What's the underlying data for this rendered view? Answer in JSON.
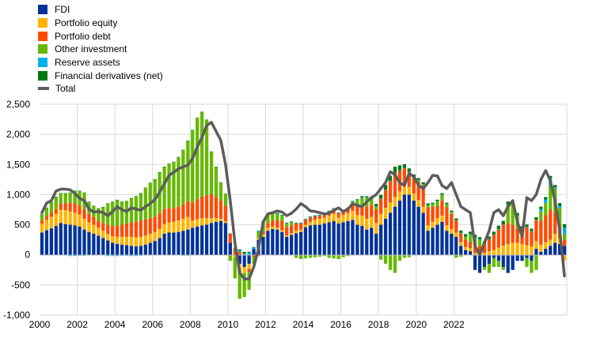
{
  "chart_data": {
    "type": "bar",
    "stacked": true,
    "grid": true,
    "legend_position": "top-left",
    "ylim": [
      -1000,
      2500
    ],
    "yticks": [
      -1000,
      -500,
      0,
      500,
      1000,
      1500,
      2000,
      2500
    ],
    "ytick_labels": [
      "-1,000",
      "-500",
      "0",
      "500",
      "1,000",
      "1,500",
      "2,000",
      "2,500"
    ],
    "xtick_labels": [
      "2000",
      "2002",
      "2004",
      "2006",
      "2008",
      "2010",
      "2012",
      "2014",
      "2016",
      "2018",
      "2020",
      "2022"
    ],
    "x_start_year": 2000,
    "periods_per_year": 4,
    "categories_note": "quarterly, 2000Q1 to 2022Q4",
    "series": [
      {
        "name": "FDI",
        "color": "#003299",
        "values": [
          370,
          410,
          440,
          480,
          530,
          510,
          500,
          490,
          470,
          420,
          380,
          350,
          320,
          280,
          240,
          200,
          180,
          170,
          160,
          150,
          140,
          150,
          170,
          200,
          230,
          280,
          350,
          370,
          370,
          380,
          400,
          420,
          450,
          470,
          490,
          500,
          530,
          550,
          560,
          530,
          200,
          0,
          -150,
          -200,
          -150,
          100,
          250,
          300,
          400,
          430,
          420,
          380,
          300,
          330,
          360,
          380,
          460,
          490,
          500,
          500,
          520,
          540,
          560,
          520,
          540,
          560,
          580,
          500,
          480,
          420,
          450,
          350,
          500,
          600,
          700,
          800,
          900,
          1000,
          1000,
          900,
          800,
          700,
          400,
          450,
          500,
          550,
          400,
          350,
          300,
          150,
          80,
          60,
          -250,
          -300,
          -200,
          -150,
          -50,
          -100,
          -200,
          -300,
          -250,
          -100,
          -100,
          -50,
          -100,
          100,
          50,
          100,
          150,
          200,
          180,
          150,
          50,
          -150
        ]
      },
      {
        "name": "Portfolio equity",
        "color": "#FFB400",
        "values": [
          150,
          170,
          190,
          200,
          220,
          230,
          220,
          210,
          200,
          180,
          160,
          150,
          130,
          120,
          110,
          110,
          120,
          130,
          140,
          150,
          150,
          150,
          150,
          150,
          150,
          150,
          160,
          170,
          180,
          190,
          200,
          210,
          120,
          120,
          120,
          110,
          80,
          60,
          40,
          30,
          0,
          -40,
          -80,
          -100,
          -80,
          0,
          30,
          40,
          50,
          40,
          30,
          30,
          20,
          30,
          40,
          40,
          40,
          60,
          80,
          100,
          100,
          110,
          120,
          100,
          120,
          130,
          150,
          160,
          170,
          180,
          180,
          180,
          180,
          180,
          170,
          160,
          150,
          140,
          130,
          120,
          110,
          100,
          90,
          100,
          110,
          100,
          90,
          80,
          70,
          60,
          50,
          50,
          30,
          40,
          30,
          60,
          80,
          120,
          150,
          180,
          200,
          200,
          180,
          160,
          140,
          130,
          120,
          110,
          100,
          150,
          100,
          -100,
          -120,
          -60
        ]
      },
      {
        "name": "Portfolio debt",
        "color": "#FF4B00",
        "values": [
          50,
          60,
          70,
          80,
          100,
          120,
          140,
          160,
          150,
          150,
          140,
          130,
          120,
          130,
          150,
          170,
          180,
          200,
          220,
          240,
          260,
          270,
          270,
          260,
          250,
          260,
          250,
          240,
          230,
          230,
          240,
          260,
          300,
          330,
          360,
          380,
          400,
          350,
          300,
          250,
          150,
          100,
          50,
          0,
          -50,
          -30,
          -20,
          50,
          80,
          100,
          130,
          150,
          140,
          130,
          120,
          100,
          80,
          70,
          60,
          50,
          60,
          70,
          80,
          70,
          60,
          80,
          100,
          150,
          180,
          200,
          200,
          220,
          250,
          300,
          350,
          400,
          350,
          300,
          250,
          250,
          300,
          350,
          300,
          250,
          200,
          250,
          300,
          250,
          200,
          150,
          120,
          110,
          100,
          110,
          150,
          200,
          250,
          300,
          350,
          350,
          300,
          250,
          150,
          300,
          250,
          350,
          400,
          450,
          500,
          350,
          200,
          100,
          -50,
          -30
        ]
      },
      {
        "name": "Other investment",
        "color": "#65B800",
        "values": [
          100,
          140,
          170,
          200,
          170,
          160,
          170,
          200,
          240,
          280,
          200,
          180,
          200,
          260,
          350,
          400,
          430,
          380,
          370,
          400,
          420,
          450,
          520,
          580,
          620,
          680,
          700,
          730,
          760,
          820,
          900,
          1000,
          1200,
          1350,
          1400,
          1250,
          700,
          500,
          300,
          200,
          -100,
          -350,
          -500,
          -400,
          -300,
          -120,
          100,
          150,
          130,
          120,
          100,
          90,
          60,
          50,
          -50,
          -70,
          -60,
          -50,
          -40,
          -30,
          -20,
          -50,
          -60,
          -70,
          -40,
          -20,
          50,
          100,
          120,
          150,
          100,
          50,
          -80,
          -150,
          -250,
          -300,
          -100,
          -50,
          -40,
          20,
          30,
          20,
          30,
          40,
          80,
          100,
          50,
          30,
          -50,
          -30,
          50,
          120,
          150,
          100,
          -50,
          -150,
          -150,
          -100,
          -50,
          300,
          350,
          200,
          100,
          -150,
          -200,
          -250,
          150,
          200,
          400,
          400,
          300,
          100
        ]
      },
      {
        "name": "Reserve assets",
        "color": "#00B1EA",
        "values": [
          -10,
          -10,
          -10,
          -10,
          -10,
          -10,
          -20,
          -20,
          -15,
          -15,
          -10,
          -10,
          -10,
          -10,
          -20,
          -20,
          -20,
          -15,
          -15,
          -20,
          -20,
          -15,
          -10,
          -10,
          -10,
          -10,
          -10,
          -10,
          -10,
          -10,
          -15,
          -15,
          -10,
          -10,
          -10,
          -10,
          -5,
          -5,
          -5,
          -5,
          0,
          10,
          20,
          20,
          30,
          20,
          10,
          10,
          5,
          5,
          5,
          5,
          5,
          5,
          5,
          5,
          5,
          5,
          5,
          5,
          5,
          5,
          5,
          5,
          5,
          5,
          5,
          5,
          5,
          5,
          5,
          5,
          5,
          5,
          5,
          5,
          5,
          5,
          5,
          5,
          5,
          5,
          5,
          5,
          5,
          5,
          5,
          5,
          5,
          5,
          5,
          5,
          5,
          5,
          5,
          5,
          5,
          5,
          5,
          5,
          5,
          5,
          5,
          5,
          5,
          5,
          40,
          60,
          120,
          20,
          30,
          100,
          10,
          10
        ]
      },
      {
        "name": "Financial derivatives (net)",
        "color": "#007816",
        "values": [
          5,
          5,
          5,
          5,
          5,
          5,
          5,
          5,
          5,
          5,
          5,
          5,
          5,
          5,
          5,
          5,
          5,
          5,
          5,
          5,
          5,
          5,
          5,
          5,
          5,
          5,
          5,
          5,
          5,
          5,
          5,
          5,
          5,
          5,
          5,
          5,
          5,
          5,
          5,
          5,
          5,
          10,
          20,
          30,
          20,
          10,
          10,
          10,
          10,
          10,
          10,
          10,
          10,
          10,
          10,
          10,
          10,
          10,
          10,
          10,
          10,
          10,
          10,
          10,
          10,
          10,
          10,
          10,
          20,
          20,
          30,
          40,
          60,
          80,
          90,
          100,
          80,
          60,
          50,
          40,
          30,
          30,
          30,
          20,
          20,
          20,
          20,
          20,
          30,
          40,
          40,
          40,
          50,
          40,
          40,
          40,
          50,
          60,
          60,
          50,
          40,
          40,
          40,
          40,
          40,
          40,
          40,
          40,
          40,
          40,
          50,
          60,
          60,
          60
        ]
      }
    ],
    "total": {
      "name": "Total",
      "color": "#5C5C5C",
      "values": [
        700,
        860,
        900,
        1060,
        1090,
        1090,
        1080,
        1020,
        940,
        900,
        760,
        710,
        720,
        700,
        650,
        720,
        800,
        750,
        720,
        780,
        760,
        740,
        800,
        850,
        920,
        1040,
        1180,
        1320,
        1370,
        1430,
        1460,
        1490,
        1600,
        1790,
        1950,
        2150,
        2200,
        2050,
        1900,
        1500,
        900,
        200,
        -300,
        -400,
        -400,
        -200,
        100,
        550,
        680,
        700,
        730,
        710,
        650,
        690,
        760,
        850,
        800,
        730,
        720,
        700,
        680,
        690,
        740,
        780,
        720,
        760,
        850,
        820,
        800,
        880,
        950,
        1000,
        1100,
        1200,
        1380,
        1330,
        1200,
        1150,
        1350,
        1300,
        1150,
        1100,
        1200,
        1320,
        1310,
        1150,
        1100,
        1200,
        1000,
        800,
        750,
        700,
        150,
        0,
        200,
        400,
        700,
        750,
        650,
        800,
        900,
        550,
        300,
        950,
        900,
        1000,
        1250,
        1400,
        1230,
        900,
        400,
        -350
      ]
    }
  }
}
